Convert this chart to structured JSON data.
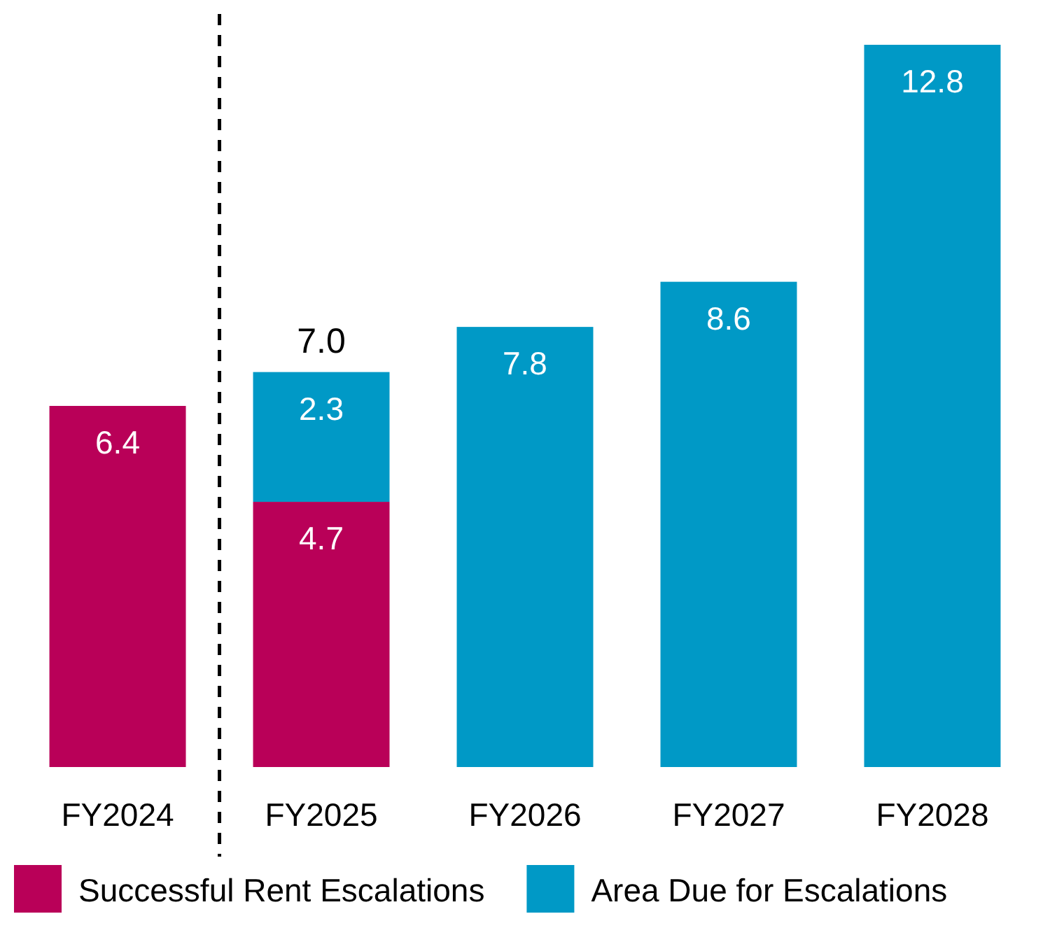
{
  "chart_data": {
    "type": "bar",
    "stacked": true,
    "categories": [
      "FY2024",
      "FY2025",
      "FY2026",
      "FY2027",
      "FY2028"
    ],
    "series": [
      {
        "name": "Successful Rent Escalations",
        "color": "#b90058",
        "values": [
          6.4,
          4.7,
          null,
          null,
          null
        ]
      },
      {
        "name": "Area Due for Escalations",
        "color": "#0099c6",
        "values": [
          null,
          2.3,
          7.8,
          8.6,
          12.8
        ]
      }
    ],
    "data_labels": true,
    "totals": [
      null,
      "7.0",
      null,
      null,
      null
    ],
    "legend": "bottom"
  }
}
